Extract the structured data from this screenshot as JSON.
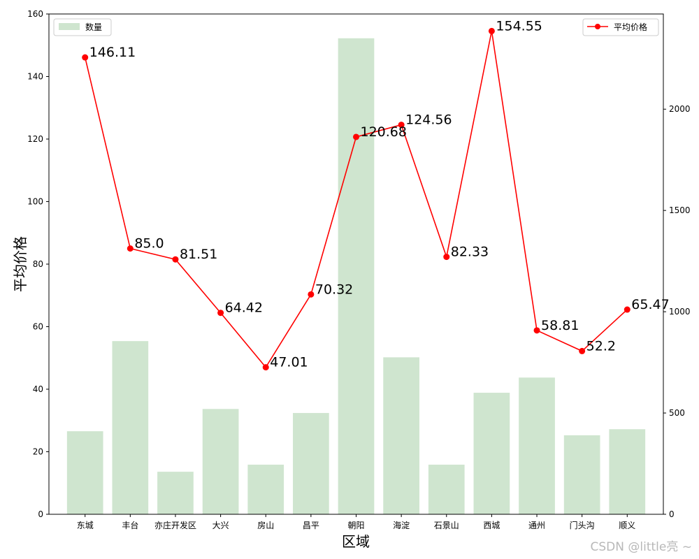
{
  "chart_data": {
    "type": "bar",
    "categories": [
      "东城",
      "丰台",
      "亦庄开发区",
      "大兴",
      "房山",
      "昌平",
      "朝阳",
      "海淀",
      "石景山",
      "西城",
      "通州",
      "门头沟",
      "顺义"
    ],
    "xlabel": "区域",
    "ylabel": "平均价格",
    "ylim_left": [
      0,
      160
    ],
    "yticks_left": [
      0,
      20,
      40,
      60,
      80,
      100,
      120,
      140,
      160
    ],
    "ylim_right": [
      0,
      2470
    ],
    "yticks_right": [
      0,
      500,
      1000,
      1500,
      2000
    ],
    "grid": false,
    "series": [
      {
        "name": "数量",
        "kind": "bar",
        "axis": "right",
        "color": "#cfe5cf",
        "values": [
          410,
          855,
          210,
          520,
          245,
          500,
          2350,
          775,
          245,
          600,
          675,
          390,
          420
        ]
      },
      {
        "name": "平均价格",
        "kind": "line",
        "axis": "left",
        "color": "#ff0000",
        "values": [
          146.11,
          85.0,
          81.51,
          64.42,
          47.01,
          70.32,
          120.68,
          124.56,
          82.33,
          154.55,
          58.81,
          52.2,
          65.47
        ],
        "labels": [
          "146.11",
          "85.0",
          "81.51",
          "64.42",
          "47.01",
          "70.32",
          "120.68",
          "124.56",
          "82.33",
          "154.55",
          "58.81",
          "52.2",
          "65.47"
        ]
      }
    ],
    "legend_left": {
      "placement": "top-left",
      "label": "数量"
    },
    "legend_right": {
      "placement": "top-right",
      "label": "平均价格"
    }
  },
  "watermark": "CSDN @little亮 ~"
}
